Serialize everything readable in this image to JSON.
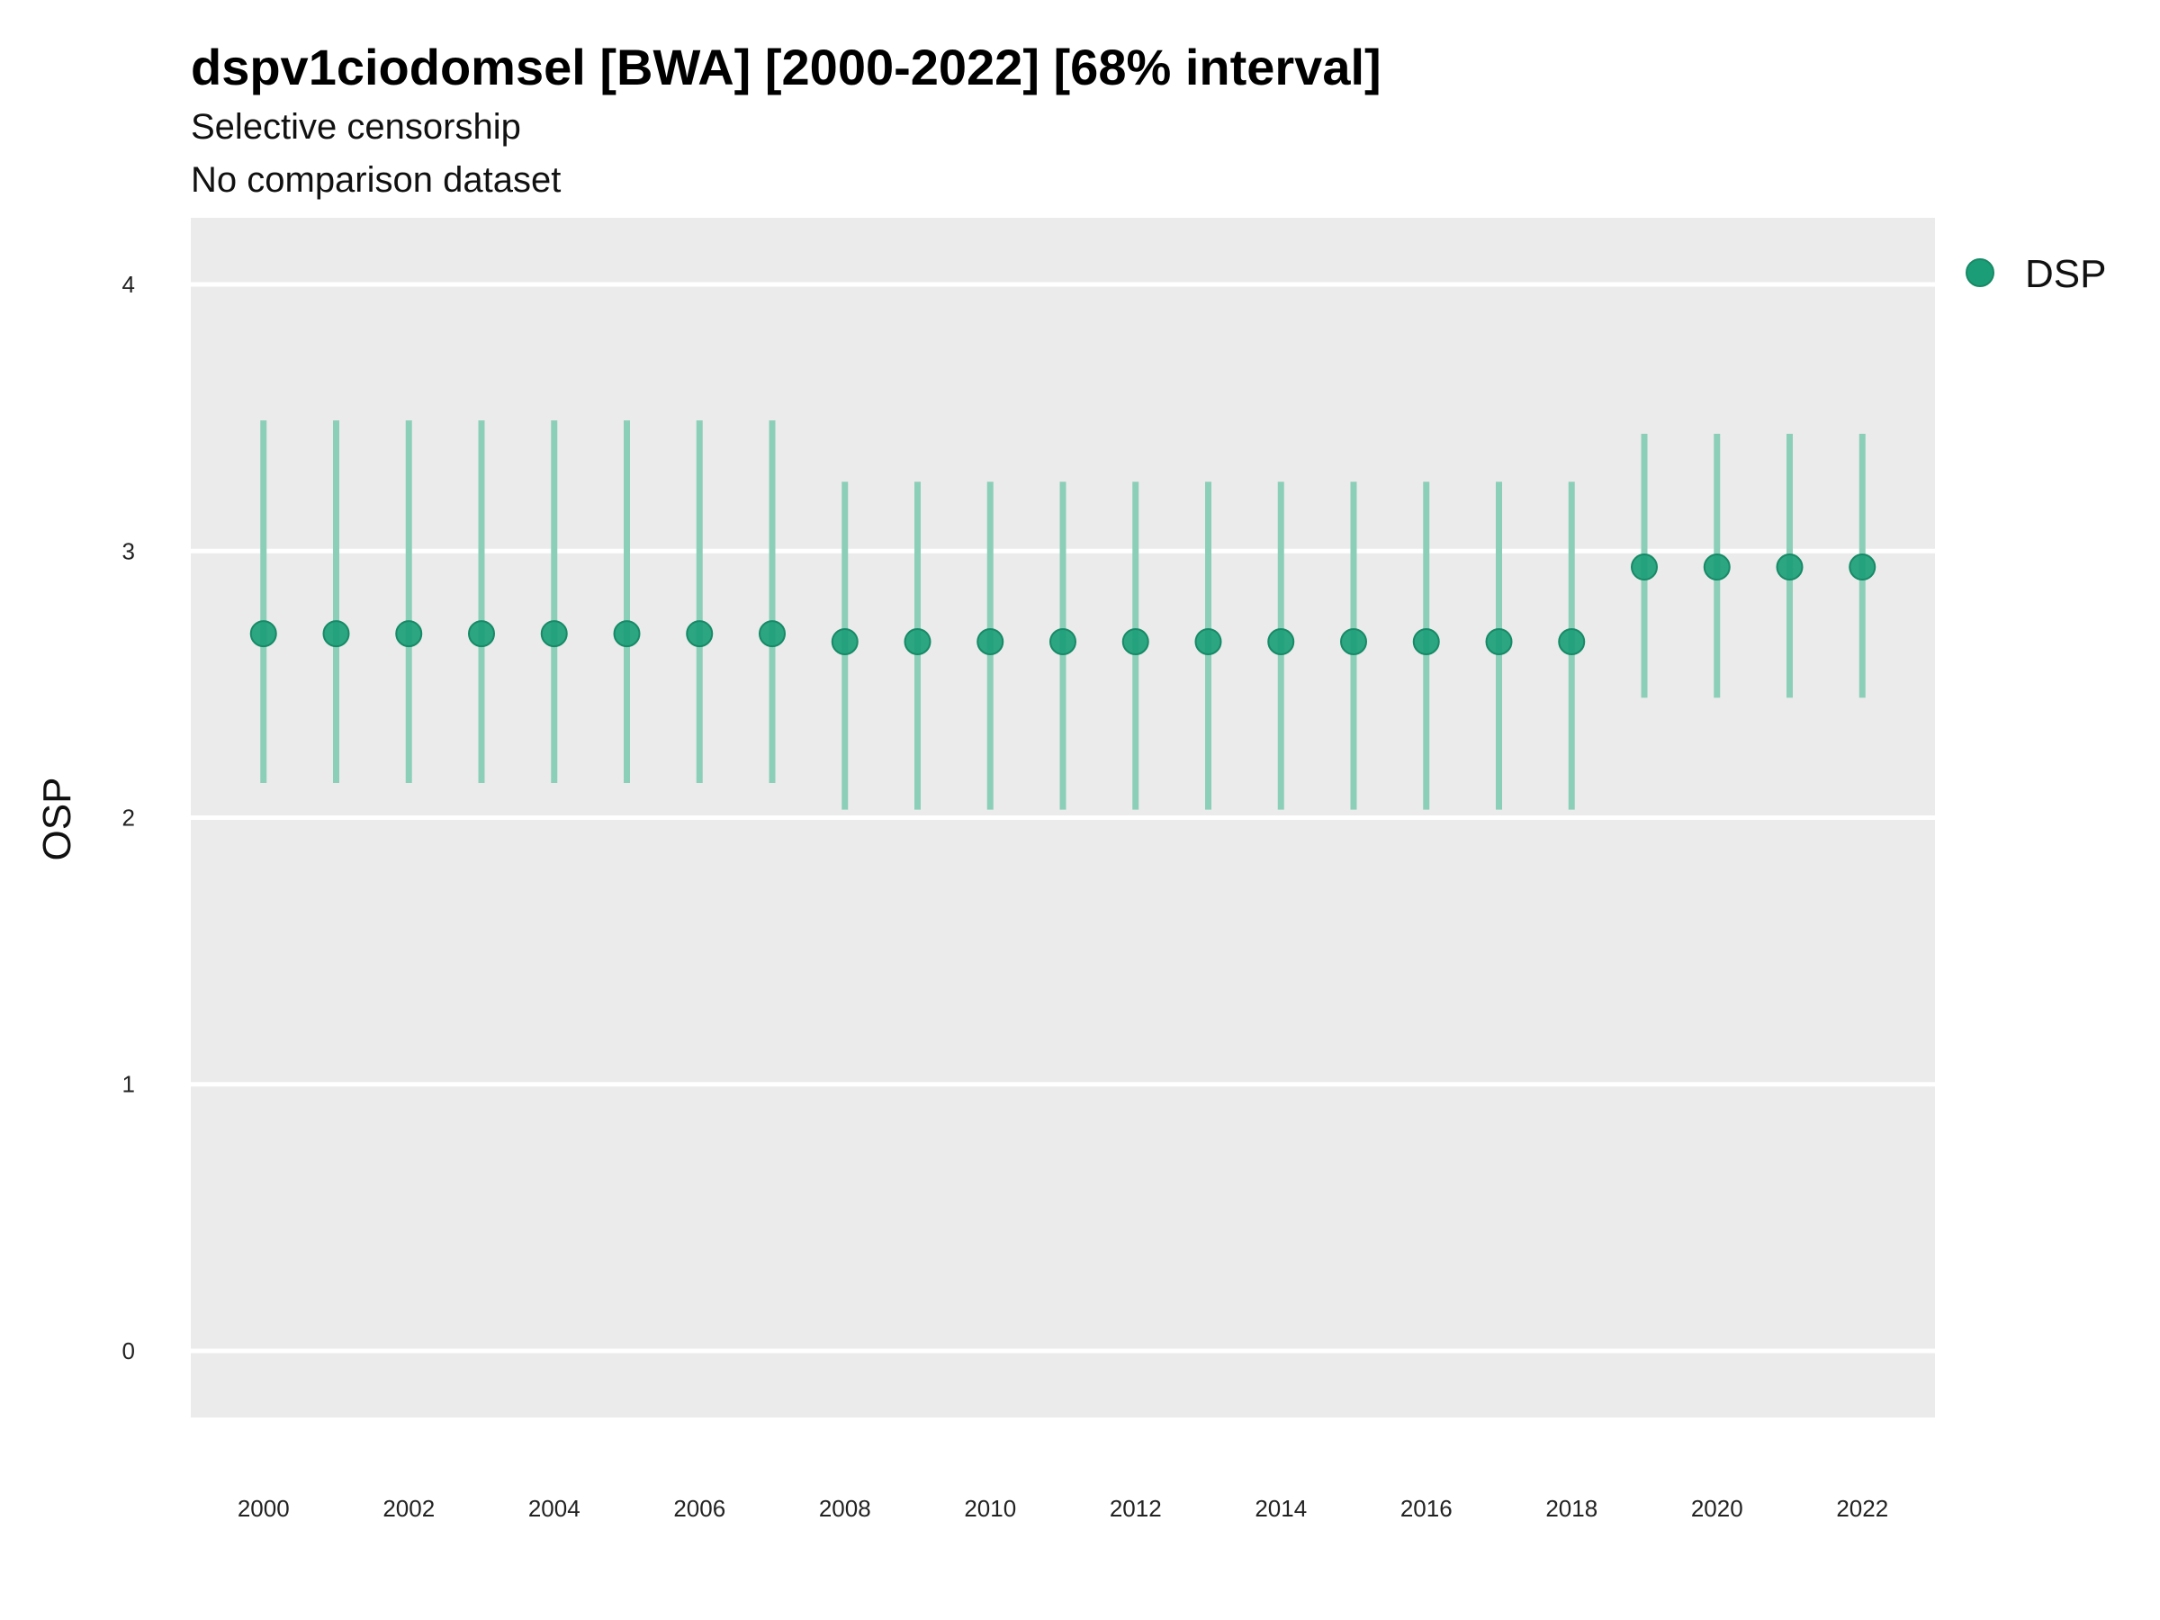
{
  "chart_data": {
    "type": "scatter",
    "title": "dspv1ciodomsel [BWA] [2000-2022] [68% interval]",
    "subtitle": "Selective censorship",
    "subtitle2": "No comparison dataset",
    "xlabel": "",
    "ylabel": "OSP",
    "xlim": [
      1999,
      2023
    ],
    "ylim": [
      -0.25,
      4.25
    ],
    "x_ticks": [
      2000,
      2002,
      2004,
      2006,
      2008,
      2010,
      2012,
      2014,
      2016,
      2018,
      2020,
      2022
    ],
    "y_ticks": [
      0,
      1,
      2,
      3,
      4
    ],
    "grid": true,
    "legend": {
      "position": "right",
      "entries": [
        "DSP"
      ]
    },
    "colors": {
      "point": "#1b9e77",
      "interval": "#8ccfb9",
      "panel": "#ebebeb",
      "grid": "#ffffff"
    },
    "series": [
      {
        "name": "DSP",
        "x": [
          2000,
          2001,
          2002,
          2003,
          2004,
          2005,
          2006,
          2007,
          2008,
          2009,
          2010,
          2011,
          2012,
          2013,
          2014,
          2015,
          2016,
          2017,
          2018,
          2019,
          2020,
          2021,
          2022
        ],
        "y": [
          2.69,
          2.69,
          2.69,
          2.69,
          2.69,
          2.69,
          2.69,
          2.69,
          2.66,
          2.66,
          2.66,
          2.66,
          2.66,
          2.66,
          2.66,
          2.66,
          2.66,
          2.66,
          2.66,
          2.94,
          2.94,
          2.94,
          2.94
        ],
        "lower": [
          2.13,
          2.13,
          2.13,
          2.13,
          2.13,
          2.13,
          2.13,
          2.13,
          2.03,
          2.03,
          2.03,
          2.03,
          2.03,
          2.03,
          2.03,
          2.03,
          2.03,
          2.03,
          2.03,
          2.45,
          2.45,
          2.45,
          2.45
        ],
        "upper": [
          3.49,
          3.49,
          3.49,
          3.49,
          3.49,
          3.49,
          3.49,
          3.49,
          3.26,
          3.26,
          3.26,
          3.26,
          3.26,
          3.26,
          3.26,
          3.26,
          3.26,
          3.26,
          3.26,
          3.44,
          3.44,
          3.44,
          3.44
        ]
      }
    ]
  }
}
